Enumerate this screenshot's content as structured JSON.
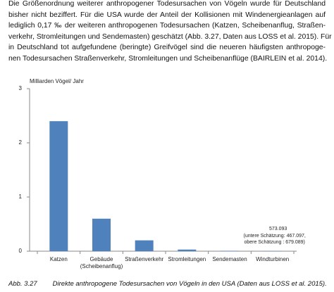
{
  "paragraph": {
    "lines": [
      "Die Größenordnung weiterer anthropogener Todesursachen von Vögeln wurde für Deutschland",
      "bisher nicht beziffert. Für die USA wurde der Anteil der Kollisionen mit Windenergieanlagen auf",
      "lediglich 0,17 ‰ der weiteren anthropogenen Todesursachen (Katzen, Scheibenanflug, Straßen-",
      "verkehr, Stromleitungen und Sendemasten) geschätzt (Abb. 3.27, Daten aus LOSS et al. 2015). Für",
      "in Deutschland tot aufgefundene (beringte) Greifvögel sind die neueren häufigsten anthropoge-",
      "nen Todesursachen Straßenverkehr, Stromleitungen und Scheibenanflüge (BAIRLEIN et al. 2014)."
    ]
  },
  "chart_data": {
    "type": "bar",
    "y_label": "Milliarden Vögel/ Jahr",
    "categories": [
      "Katzen",
      "Gebäude (Scheibenanflug)",
      "Straßenverkehr",
      "Stromleitungen",
      "Sendemasten",
      "Windturbinen"
    ],
    "values": [
      2.4,
      0.6,
      0.2,
      0.03,
      0.007,
      0.000573093
    ],
    "value_labels": [
      null,
      null,
      null,
      null,
      null,
      "573.093"
    ],
    "annotations": [
      "(untere Schätzung: 467.097,",
      "obere Schätzung : 679.089)"
    ],
    "color": "#4f81bd",
    "ylim": [
      0,
      3
    ],
    "yticks": [
      0,
      1,
      2,
      3
    ]
  },
  "caption": {
    "label": "Abb. 3.27",
    "text": "Direkte anthropogene Todesursachen von Vögeln in den USA (Daten aus LOSS et al. 2015)."
  }
}
